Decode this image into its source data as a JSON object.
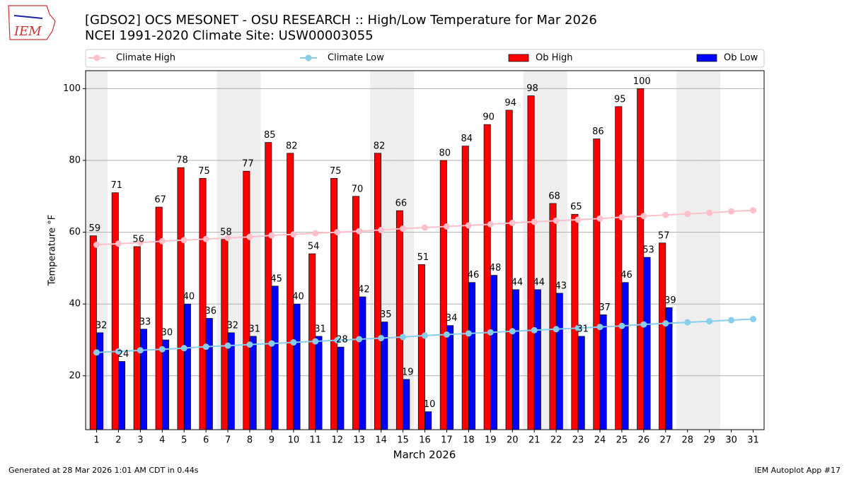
{
  "chart_data": {
    "type": "bar",
    "logo_text": "IEM",
    "title": "[GDSO2] OCS MESONET - OSU RESEARCH :: High/Low Temperature for Mar 2026",
    "subtitle": "NCEI 1991-2020 Climate Site: USW00003055",
    "ylabel": "Temperature °F",
    "xlabel": "March 2026",
    "x": [
      1,
      2,
      3,
      4,
      5,
      6,
      7,
      8,
      9,
      10,
      11,
      12,
      13,
      14,
      15,
      16,
      17,
      18,
      19,
      20,
      21,
      22,
      23,
      24,
      25,
      26,
      27,
      28,
      29,
      30,
      31
    ],
    "xticks": [
      1,
      2,
      3,
      4,
      5,
      6,
      7,
      8,
      9,
      10,
      11,
      12,
      13,
      14,
      15,
      16,
      17,
      18,
      19,
      20,
      21,
      22,
      23,
      24,
      25,
      26,
      27,
      28,
      29,
      30,
      31
    ],
    "xlim": [
      0.5,
      31.5
    ],
    "ylim": [
      5,
      105
    ],
    "yticks": [
      20,
      40,
      60,
      80,
      100
    ],
    "grid": true,
    "legend": "top",
    "shaded_days": [
      1,
      7,
      8,
      14,
      15,
      21,
      22,
      28,
      29
    ],
    "shade_color": "#eeeeee",
    "series": [
      {
        "name": "Climate High",
        "type": "line",
        "color": "#ffc0cb",
        "values": [
          56.5,
          56.8,
          57.1,
          57.5,
          57.8,
          58.1,
          58.4,
          58.7,
          59.1,
          59.4,
          59.7,
          60.0,
          60.3,
          60.6,
          61.0,
          61.3,
          61.6,
          61.9,
          62.2,
          62.6,
          62.9,
          63.2,
          63.5,
          63.8,
          64.2,
          64.5,
          64.8,
          65.1,
          65.4,
          65.8,
          66.1
        ]
      },
      {
        "name": "Climate Low",
        "type": "line",
        "color": "#87ceeb",
        "values": [
          26.5,
          26.8,
          27.1,
          27.4,
          27.7,
          28.1,
          28.4,
          28.7,
          29.0,
          29.3,
          29.6,
          29.9,
          30.2,
          30.5,
          30.8,
          31.2,
          31.5,
          31.8,
          32.1,
          32.4,
          32.7,
          33.0,
          33.3,
          33.6,
          33.9,
          34.3,
          34.6,
          34.9,
          35.2,
          35.5,
          35.8
        ]
      },
      {
        "name": "Ob High",
        "type": "bar",
        "color": "#ff0000",
        "values": [
          59,
          71,
          56,
          67,
          78,
          75,
          58,
          77,
          85,
          82,
          54,
          75,
          70,
          82,
          66,
          51,
          80,
          84,
          90,
          94,
          98,
          68,
          65,
          86,
          95,
          100,
          57,
          null,
          null,
          null,
          null
        ]
      },
      {
        "name": "Ob Low",
        "type": "bar",
        "color": "#0000ff",
        "values": [
          32,
          24,
          33,
          30,
          40,
          36,
          32,
          31,
          45,
          40,
          31,
          28,
          42,
          35,
          19,
          10,
          34,
          46,
          48,
          44,
          44,
          43,
          31,
          37,
          46,
          53,
          39,
          null,
          null,
          null,
          null
        ]
      }
    ],
    "footer_left": "Generated at 28 Mar 2026 1:01 AM CDT in 0.44s",
    "footer_right": "IEM Autoplot App #17"
  }
}
